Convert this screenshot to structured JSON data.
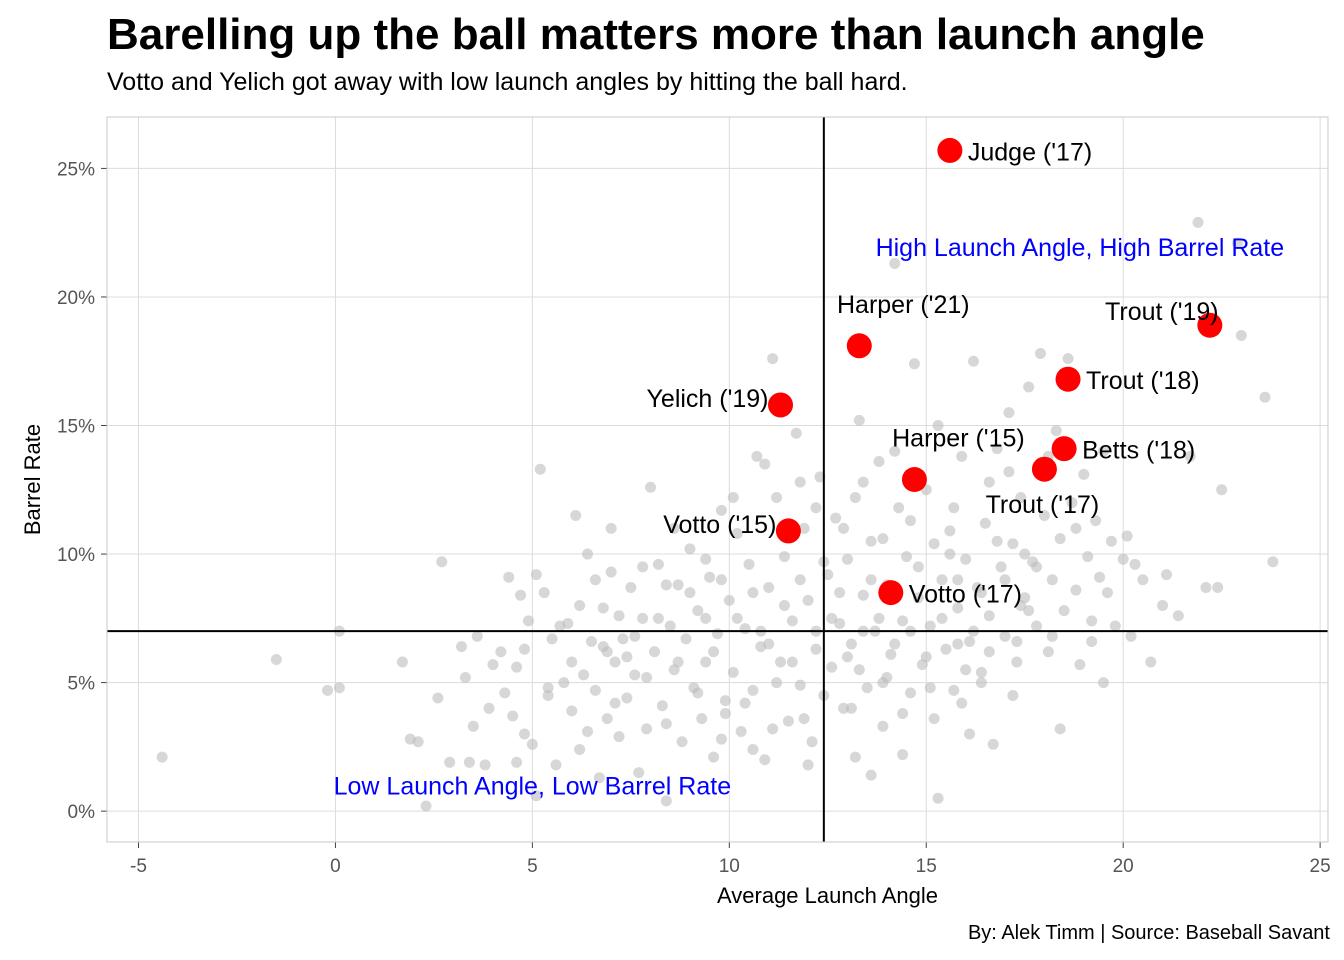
{
  "title": "Barelling up the ball matters more than launch angle",
  "subtitle": "Votto and Yelich got away with low launch angles by hitting the ball hard.",
  "caption": "By: Alek Timm  |  Source: Baseball Savant",
  "chart_data": {
    "type": "scatter",
    "xlabel": "Average Launch Angle",
    "ylabel": "Barrel Rate",
    "xlim": [
      -5.8,
      25.2
    ],
    "ylim": [
      -0.012,
      0.27
    ],
    "x_ticks": [
      -5,
      0,
      5,
      10,
      15,
      20,
      25
    ],
    "x_tick_labels": [
      "-5",
      "0",
      "5",
      "10",
      "15",
      "20",
      "25"
    ],
    "y_ticks": [
      0,
      0.05,
      0.1,
      0.15,
      0.2,
      0.25
    ],
    "y_tick_labels": [
      "0%",
      "5%",
      "10%",
      "15%",
      "20%",
      "25%"
    ],
    "grid": true,
    "reference_lines": {
      "vertical_x": 12.4,
      "horizontal_y": 0.07
    },
    "colors": {
      "background_points": "#bdbdbd",
      "highlight_points": "#ff0000",
      "quadrant_labels": "#0000ff",
      "reference_lines": "#000000",
      "grid": "#dcdcdc"
    },
    "quadrant_labels": [
      {
        "text": "High Launch Angle, High Barrel Rate",
        "x": 18.9,
        "y": 0.219
      },
      {
        "text": "Low Launch Angle, Low Barrel Rate",
        "x": 5.0,
        "y": 0.0095
      }
    ],
    "highlighted": [
      {
        "label": "Judge ('17)",
        "x": 15.6,
        "y": 0.257,
        "label_side": "right"
      },
      {
        "label": "Trout ('19)",
        "x": 22.2,
        "y": 0.189,
        "label_side": "above-left"
      },
      {
        "label": "Harper ('21)",
        "x": 13.3,
        "y": 0.181,
        "label_side": "above"
      },
      {
        "label": "Trout ('18)",
        "x": 18.6,
        "y": 0.168,
        "label_side": "right"
      },
      {
        "label": "Yelich ('19)",
        "x": 11.3,
        "y": 0.158,
        "label_side": "left"
      },
      {
        "label": "Harper ('15)",
        "x": 14.7,
        "y": 0.129,
        "label_side": "above"
      },
      {
        "label": "Betts ('18)",
        "x": 18.5,
        "y": 0.141,
        "label_side": "right"
      },
      {
        "label": "Trout ('17)",
        "x": 18.0,
        "y": 0.133,
        "label_side": "below"
      },
      {
        "label": "Votto ('15)",
        "x": 11.5,
        "y": 0.109,
        "label_side": "left"
      },
      {
        "label": "Votto ('17)",
        "x": 14.1,
        "y": 0.085,
        "label_side": "right"
      }
    ],
    "background_points": [
      [
        -4.4,
        0.021
      ],
      [
        -1.5,
        0.059
      ],
      [
        -0.2,
        0.047
      ],
      [
        0.1,
        0.048
      ],
      [
        0.1,
        0.07
      ],
      [
        1.7,
        0.058
      ],
      [
        1.9,
        0.028
      ],
      [
        2.1,
        0.027
      ],
      [
        2.3,
        0.002
      ],
      [
        2.7,
        0.097
      ],
      [
        2.9,
        0.019
      ],
      [
        3.2,
        0.064
      ],
      [
        3.3,
        0.052
      ],
      [
        3.4,
        0.019
      ],
      [
        3.6,
        0.068
      ],
      [
        3.8,
        0.018
      ],
      [
        4.0,
        0.057
      ],
      [
        4.2,
        0.062
      ],
      [
        4.3,
        0.046
      ],
      [
        4.4,
        0.091
      ],
      [
        4.5,
        0.037
      ],
      [
        4.6,
        0.019
      ],
      [
        4.7,
        0.084
      ],
      [
        4.8,
        0.03
      ],
      [
        4.9,
        0.074
      ],
      [
        5.0,
        0.026
      ],
      [
        5.1,
        0.092
      ],
      [
        5.1,
        0.006
      ],
      [
        5.2,
        0.133
      ],
      [
        5.3,
        0.085
      ],
      [
        5.4,
        0.045
      ],
      [
        5.5,
        0.067
      ],
      [
        5.6,
        0.018
      ],
      [
        5.8,
        0.05
      ],
      [
        5.9,
        0.073
      ],
      [
        6.0,
        0.039
      ],
      [
        6.1,
        0.115
      ],
      [
        6.2,
        0.024
      ],
      [
        6.3,
        0.053
      ],
      [
        6.4,
        0.1
      ],
      [
        6.5,
        0.066
      ],
      [
        6.6,
        0.047
      ],
      [
        6.7,
        0.013
      ],
      [
        6.8,
        0.079
      ],
      [
        6.9,
        0.036
      ],
      [
        7.0,
        0.093
      ],
      [
        7.1,
        0.058
      ],
      [
        7.2,
        0.029
      ],
      [
        7.3,
        0.067
      ],
      [
        7.4,
        0.044
      ],
      [
        7.5,
        0.087
      ],
      [
        7.6,
        0.053
      ],
      [
        7.7,
        0.015
      ],
      [
        7.8,
        0.075
      ],
      [
        7.9,
        0.032
      ],
      [
        8.0,
        0.126
      ],
      [
        8.1,
        0.062
      ],
      [
        8.2,
        0.096
      ],
      [
        8.3,
        0.041
      ],
      [
        8.4,
        0.004
      ],
      [
        8.5,
        0.072
      ],
      [
        8.6,
        0.055
      ],
      [
        8.7,
        0.088
      ],
      [
        8.8,
        0.027
      ],
      [
        8.9,
        0.067
      ],
      [
        9.0,
        0.102
      ],
      [
        9.1,
        0.048
      ],
      [
        9.2,
        0.078
      ],
      [
        9.3,
        0.036
      ],
      [
        9.4,
        0.058
      ],
      [
        9.5,
        0.091
      ],
      [
        9.6,
        0.021
      ],
      [
        9.7,
        0.069
      ],
      [
        9.8,
        0.117
      ],
      [
        9.9,
        0.043
      ],
      [
        10.0,
        0.082
      ],
      [
        10.1,
        0.054
      ],
      [
        10.2,
        0.108
      ],
      [
        10.3,
        0.031
      ],
      [
        10.4,
        0.071
      ],
      [
        10.5,
        0.096
      ],
      [
        10.6,
        0.047
      ],
      [
        10.7,
        0.138
      ],
      [
        10.8,
        0.064
      ],
      [
        10.9,
        0.02
      ],
      [
        11.0,
        0.087
      ],
      [
        11.1,
        0.176
      ],
      [
        11.2,
        0.122
      ],
      [
        11.3,
        0.058
      ],
      [
        11.4,
        0.099
      ],
      [
        11.5,
        0.035
      ],
      [
        11.6,
        0.074
      ],
      [
        11.7,
        0.147
      ],
      [
        11.8,
        0.049
      ],
      [
        11.9,
        0.11
      ],
      [
        12.0,
        0.082
      ],
      [
        12.1,
        0.027
      ],
      [
        12.2,
        0.063
      ],
      [
        12.3,
        0.13
      ],
      [
        12.5,
        0.092
      ],
      [
        12.6,
        0.056
      ],
      [
        12.7,
        0.114
      ],
      [
        12.8,
        0.073
      ],
      [
        12.9,
        0.04
      ],
      [
        13.0,
        0.098
      ],
      [
        13.1,
        0.065
      ],
      [
        13.2,
        0.021
      ],
      [
        13.3,
        0.152
      ],
      [
        13.4,
        0.084
      ],
      [
        13.5,
        0.048
      ],
      [
        13.6,
        0.105
      ],
      [
        13.7,
        0.07
      ],
      [
        13.8,
        0.136
      ],
      [
        13.9,
        0.033
      ],
      [
        14.0,
        0.088
      ],
      [
        14.1,
        0.061
      ],
      [
        14.2,
        0.213
      ],
      [
        14.3,
        0.118
      ],
      [
        14.4,
        0.074
      ],
      [
        14.5,
        0.099
      ],
      [
        14.6,
        0.046
      ],
      [
        14.7,
        0.174
      ],
      [
        14.8,
        0.083
      ],
      [
        14.9,
        0.057
      ],
      [
        15.0,
        0.125
      ],
      [
        15.1,
        0.072
      ],
      [
        15.2,
        0.036
      ],
      [
        15.3,
        0.15
      ],
      [
        15.4,
        0.09
      ],
      [
        15.5,
        0.063
      ],
      [
        15.6,
        0.109
      ],
      [
        15.7,
        0.047
      ],
      [
        15.8,
        0.079
      ],
      [
        15.9,
        0.138
      ],
      [
        16.0,
        0.098
      ],
      [
        16.1,
        0.066
      ],
      [
        16.2,
        0.175
      ],
      [
        16.3,
        0.087
      ],
      [
        16.4,
        0.054
      ],
      [
        16.5,
        0.112
      ],
      [
        16.6,
        0.076
      ],
      [
        16.7,
        0.026
      ],
      [
        16.8,
        0.141
      ],
      [
        16.9,
        0.095
      ],
      [
        17.0,
        0.068
      ],
      [
        17.1,
        0.155
      ],
      [
        17.2,
        0.104
      ],
      [
        17.3,
        0.058
      ],
      [
        17.4,
        0.122
      ],
      [
        17.5,
        0.083
      ],
      [
        17.6,
        0.165
      ],
      [
        17.7,
        0.097
      ],
      [
        17.8,
        0.072
      ],
      [
        17.9,
        0.178
      ],
      [
        18.0,
        0.115
      ],
      [
        18.1,
        0.062
      ],
      [
        18.2,
        0.09
      ],
      [
        18.3,
        0.148
      ],
      [
        18.4,
        0.106
      ],
      [
        18.5,
        0.078
      ],
      [
        18.6,
        0.176
      ],
      [
        18.7,
        0.12
      ],
      [
        18.8,
        0.086
      ],
      [
        18.9,
        0.057
      ],
      [
        19.0,
        0.131
      ],
      [
        19.1,
        0.099
      ],
      [
        19.2,
        0.074
      ],
      [
        19.3,
        0.113
      ],
      [
        19.4,
        0.091
      ],
      [
        19.5,
        0.05
      ],
      [
        19.6,
        0.085
      ],
      [
        19.8,
        0.072
      ],
      [
        20.1,
        0.107
      ],
      [
        20.3,
        0.096
      ],
      [
        20.5,
        0.09
      ],
      [
        20.7,
        0.058
      ],
      [
        21.0,
        0.08
      ],
      [
        21.1,
        0.092
      ],
      [
        21.4,
        0.076
      ],
      [
        21.7,
        0.138
      ],
      [
        21.9,
        0.229
      ],
      [
        22.1,
        0.087
      ],
      [
        22.4,
        0.087
      ],
      [
        22.5,
        0.125
      ],
      [
        22.9,
        0.221
      ],
      [
        23.0,
        0.185
      ],
      [
        23.6,
        0.161
      ],
      [
        23.8,
        0.097
      ],
      [
        6.2,
        0.08
      ],
      [
        6.6,
        0.09
      ],
      [
        7.0,
        0.11
      ],
      [
        7.4,
        0.06
      ],
      [
        7.8,
        0.095
      ],
      [
        8.2,
        0.075
      ],
      [
        8.6,
        0.11
      ],
      [
        9.0,
        0.085
      ],
      [
        9.4,
        0.075
      ],
      [
        9.8,
        0.09
      ],
      [
        10.2,
        0.075
      ],
      [
        10.6,
        0.085
      ],
      [
        11.0,
        0.065
      ],
      [
        11.4,
        0.08
      ],
      [
        11.8,
        0.09
      ],
      [
        12.2,
        0.07
      ],
      [
        12.6,
        0.075
      ],
      [
        13.0,
        0.06
      ],
      [
        13.4,
        0.07
      ],
      [
        13.8,
        0.075
      ],
      [
        14.2,
        0.065
      ],
      [
        14.6,
        0.07
      ],
      [
        15.0,
        0.06
      ],
      [
        15.4,
        0.075
      ],
      [
        15.8,
        0.065
      ],
      [
        16.2,
        0.07
      ],
      [
        16.6,
        0.062
      ],
      [
        17.0,
        0.09
      ],
      [
        17.4,
        0.08
      ],
      [
        17.8,
        0.095
      ],
      [
        4.8,
        0.063
      ],
      [
        5.7,
        0.072
      ],
      [
        6.4,
        0.031
      ],
      [
        7.1,
        0.042
      ],
      [
        7.9,
        0.052
      ],
      [
        8.4,
        0.034
      ],
      [
        9.2,
        0.046
      ],
      [
        9.9,
        0.038
      ],
      [
        10.4,
        0.042
      ],
      [
        11.2,
        0.05
      ],
      [
        11.9,
        0.036
      ],
      [
        12.4,
        0.045
      ],
      [
        13.1,
        0.04
      ],
      [
        13.9,
        0.05
      ],
      [
        14.4,
        0.038
      ],
      [
        15.1,
        0.048
      ],
      [
        15.9,
        0.042
      ],
      [
        16.4,
        0.05
      ],
      [
        17.2,
        0.045
      ],
      [
        18.4,
        0.032
      ],
      [
        6.0,
        0.058
      ],
      [
        6.9,
        0.062
      ],
      [
        7.6,
        0.068
      ],
      [
        8.7,
        0.058
      ],
      [
        9.6,
        0.062
      ],
      [
        10.8,
        0.07
      ],
      [
        11.6,
        0.058
      ],
      [
        12.8,
        0.085
      ],
      [
        13.6,
        0.09
      ],
      [
        14.8,
        0.095
      ],
      [
        15.6,
        0.1
      ],
      [
        16.8,
        0.105
      ],
      [
        17.5,
        0.1
      ],
      [
        18.8,
        0.11
      ],
      [
        19.7,
        0.105
      ],
      [
        20.0,
        0.098
      ],
      [
        9.4,
        0.098
      ],
      [
        10.1,
        0.122
      ],
      [
        10.9,
        0.135
      ],
      [
        11.8,
        0.128
      ],
      [
        12.2,
        0.118
      ],
      [
        13.4,
        0.128
      ],
      [
        14.2,
        0.14
      ],
      [
        15.7,
        0.118
      ],
      [
        16.6,
        0.128
      ],
      [
        17.1,
        0.132
      ],
      [
        18.1,
        0.138
      ],
      [
        19.5,
        0.14
      ],
      [
        8.4,
        0.088
      ],
      [
        7.2,
        0.076
      ],
      [
        6.8,
        0.064
      ],
      [
        5.4,
        0.048
      ],
      [
        4.6,
        0.056
      ],
      [
        3.9,
        0.04
      ],
      [
        3.5,
        0.033
      ],
      [
        2.6,
        0.044
      ],
      [
        9.8,
        0.028
      ],
      [
        10.6,
        0.024
      ],
      [
        11.1,
        0.032
      ],
      [
        12.0,
        0.018
      ],
      [
        13.6,
        0.014
      ],
      [
        14.4,
        0.022
      ],
      [
        15.3,
        0.005
      ],
      [
        16.1,
        0.03
      ],
      [
        12.4,
        0.097
      ],
      [
        12.9,
        0.11
      ],
      [
        13.2,
        0.122
      ],
      [
        13.9,
        0.106
      ],
      [
        14.6,
        0.113
      ],
      [
        15.2,
        0.104
      ],
      [
        15.8,
        0.09
      ],
      [
        16.4,
        0.085
      ],
      [
        17.6,
        0.078
      ],
      [
        18.2,
        0.068
      ],
      [
        19.2,
        0.066
      ],
      [
        20.2,
        0.068
      ],
      [
        17.3,
        0.066
      ],
      [
        16.0,
        0.055
      ],
      [
        14.0,
        0.052
      ],
      [
        13.3,
        0.055
      ]
    ]
  }
}
